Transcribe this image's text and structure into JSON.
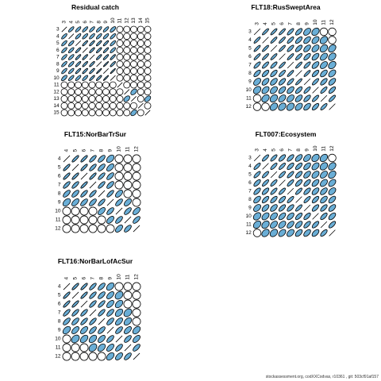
{
  "colors": {
    "ellipse_fill": "#6aaed6",
    "circle_stroke": "#000000",
    "background": "#ffffff"
  },
  "chart_data": [
    {
      "type": "correlation-ellipse-matrix",
      "title": "Residual catch",
      "ages": [
        "3",
        "4",
        "5",
        "6",
        "7",
        "8",
        "9",
        "10",
        "11",
        "12",
        "13",
        "14",
        "15"
      ],
      "strength_rows": [
        [
          1,
          0.6,
          0.6,
          0.6,
          0.6,
          0.6,
          0.6,
          0.5,
          0,
          0,
          0,
          0,
          0
        ],
        [
          0.6,
          1,
          0.6,
          0.6,
          0.6,
          0.6,
          0.6,
          0.6,
          0,
          0,
          0,
          0,
          0
        ],
        [
          0.6,
          0.6,
          1,
          0.7,
          0.7,
          0.7,
          0.7,
          0.6,
          0,
          0,
          0,
          0,
          0
        ],
        [
          0.6,
          0.6,
          0.7,
          1,
          0.7,
          0.7,
          0.7,
          0.6,
          0,
          0,
          0,
          0,
          0
        ],
        [
          0.6,
          0.6,
          0.7,
          0.7,
          1,
          0.7,
          0.7,
          0.7,
          0,
          0,
          0,
          0,
          0
        ],
        [
          0.6,
          0.6,
          0.7,
          0.7,
          0.7,
          1,
          0.8,
          0.7,
          0,
          0,
          0,
          0,
          0
        ],
        [
          0.6,
          0.6,
          0.7,
          0.7,
          0.7,
          0.8,
          1,
          0.8,
          0,
          0,
          0,
          0,
          0
        ],
        [
          0.5,
          0.6,
          0.6,
          0.6,
          0.7,
          0.7,
          0.8,
          1,
          0,
          0,
          0,
          0,
          0
        ],
        [
          0,
          0,
          0,
          0,
          0,
          0,
          0,
          0,
          1,
          0,
          0,
          0,
          0
        ],
        [
          0,
          0,
          0,
          0,
          0,
          0,
          0,
          0,
          0,
          1,
          0.3,
          0,
          0
        ],
        [
          0,
          0,
          0,
          0,
          0,
          0,
          0,
          0,
          0,
          0.3,
          1,
          0,
          0.3
        ],
        [
          0,
          0,
          0,
          0,
          0,
          0,
          0,
          0,
          0,
          0,
          0,
          1,
          0
        ],
        [
          0,
          0,
          0,
          0,
          0,
          0,
          0,
          0,
          0,
          0,
          0.3,
          0,
          1
        ]
      ]
    },
    {
      "type": "correlation-ellipse-matrix",
      "title": "FLT18:RusSweptArea",
      "ages": [
        "3",
        "4",
        "5",
        "6",
        "7",
        "8",
        "9",
        "10",
        "11",
        "12"
      ],
      "strength_rows": [
        [
          1,
          0.7,
          0.7,
          0.7,
          0.6,
          0.5,
          0.3,
          0.2,
          0,
          0
        ],
        [
          0.7,
          1,
          0.7,
          0.7,
          0.6,
          0.5,
          0.4,
          0.3,
          0.2,
          0
        ],
        [
          0.7,
          0.7,
          1,
          0.7,
          0.6,
          0.5,
          0.4,
          0.3,
          0.2,
          0.2
        ],
        [
          0.7,
          0.7,
          0.7,
          1,
          0.7,
          0.6,
          0.5,
          0.4,
          0.3,
          0.2
        ],
        [
          0.6,
          0.6,
          0.6,
          0.7,
          1,
          0.7,
          0.6,
          0.4,
          0.3,
          0.2
        ],
        [
          0.5,
          0.5,
          0.5,
          0.6,
          0.7,
          1,
          0.7,
          0.5,
          0.4,
          0.3
        ],
        [
          0.3,
          0.4,
          0.4,
          0.5,
          0.6,
          0.7,
          1,
          0.6,
          0.5,
          0.4
        ],
        [
          0.2,
          0.3,
          0.3,
          0.4,
          0.4,
          0.5,
          0.6,
          1,
          0.6,
          0.5
        ],
        [
          0,
          0.2,
          0.2,
          0.3,
          0.3,
          0.4,
          0.5,
          0.6,
          1,
          0.6
        ],
        [
          0,
          0,
          0.2,
          0.2,
          0.2,
          0.3,
          0.4,
          0.5,
          0.6,
          1
        ]
      ]
    },
    {
      "type": "correlation-ellipse-matrix",
      "title": "FLT15:NorBarTrSur",
      "ages": [
        "4",
        "5",
        "6",
        "7",
        "8",
        "9",
        "10",
        "11",
        "12"
      ],
      "strength_rows": [
        [
          1,
          0.7,
          0.7,
          0.6,
          0.5,
          0.3,
          0,
          0,
          0
        ],
        [
          0.7,
          1,
          0.7,
          0.6,
          0.5,
          0.4,
          0,
          0,
          0
        ],
        [
          0.7,
          0.7,
          1,
          0.7,
          0.6,
          0.5,
          0,
          0,
          0
        ],
        [
          0.6,
          0.6,
          0.7,
          1,
          0.6,
          0.5,
          0,
          0,
          0
        ],
        [
          0.5,
          0.5,
          0.6,
          0.6,
          1,
          0.6,
          0.4,
          0,
          0
        ],
        [
          0.3,
          0.4,
          0.5,
          0.5,
          0.6,
          1,
          0.5,
          0.4,
          0
        ],
        [
          0,
          0,
          0,
          0,
          0.4,
          0.5,
          1,
          0.5,
          0.4
        ],
        [
          0,
          0,
          0,
          0,
          0,
          0.4,
          0.5,
          1,
          0.5
        ],
        [
          0,
          0,
          0,
          0,
          0,
          0,
          0.4,
          0.5,
          1
        ]
      ]
    },
    {
      "type": "correlation-ellipse-matrix",
      "title": "FLT007:Ecosystem",
      "ages": [
        "3",
        "4",
        "5",
        "6",
        "7",
        "8",
        "9",
        "10",
        "11",
        "12"
      ],
      "strength_rows": [
        [
          1,
          0.6,
          0.6,
          0.5,
          0.5,
          0.4,
          0.3,
          0.2,
          0.2,
          0
        ],
        [
          0.6,
          1,
          0.6,
          0.6,
          0.5,
          0.5,
          0.4,
          0.3,
          0.2,
          0.2
        ],
        [
          0.6,
          0.6,
          1,
          0.6,
          0.6,
          0.5,
          0.4,
          0.3,
          0.3,
          0.2
        ],
        [
          0.5,
          0.6,
          0.6,
          1,
          0.6,
          0.5,
          0.5,
          0.4,
          0.3,
          0.3
        ],
        [
          0.5,
          0.5,
          0.6,
          0.6,
          1,
          0.6,
          0.5,
          0.4,
          0.4,
          0.3
        ],
        [
          0.4,
          0.5,
          0.5,
          0.5,
          0.6,
          1,
          0.6,
          0.5,
          0.4,
          0.4
        ],
        [
          0.3,
          0.4,
          0.4,
          0.5,
          0.5,
          0.6,
          1,
          0.5,
          0.5,
          0.4
        ],
        [
          0.2,
          0.3,
          0.3,
          0.4,
          0.4,
          0.5,
          0.5,
          1,
          0.5,
          0.4
        ],
        [
          0.2,
          0.2,
          0.3,
          0.3,
          0.4,
          0.4,
          0.5,
          0.5,
          1,
          0.5
        ],
        [
          0,
          0.2,
          0.2,
          0.3,
          0.3,
          0.4,
          0.4,
          0.4,
          0.5,
          1
        ]
      ]
    },
    {
      "type": "correlation-ellipse-matrix",
      "title": "FLT16:NorBarLofAcSur",
      "ages": [
        "4",
        "5",
        "6",
        "7",
        "8",
        "9",
        "10",
        "11",
        "12"
      ],
      "strength_rows": [
        [
          1,
          0.7,
          0.7,
          0.6,
          0.5,
          0.3,
          0,
          0,
          0
        ],
        [
          0.7,
          1,
          0.7,
          0.6,
          0.5,
          0.4,
          0.2,
          0,
          0
        ],
        [
          0.7,
          0.7,
          1,
          0.6,
          0.6,
          0.4,
          0.3,
          0,
          0
        ],
        [
          0.6,
          0.6,
          0.6,
          1,
          0.6,
          0.5,
          0.3,
          0.2,
          0
        ],
        [
          0.5,
          0.5,
          0.6,
          0.6,
          1,
          0.5,
          0.4,
          0.3,
          0
        ],
        [
          0.3,
          0.4,
          0.4,
          0.5,
          0.5,
          1,
          0.5,
          0.4,
          0.3
        ],
        [
          0,
          0.2,
          0.3,
          0.3,
          0.4,
          0.5,
          1,
          0.5,
          0.4
        ],
        [
          0,
          0,
          0,
          0.2,
          0.3,
          0.4,
          0.5,
          1,
          0.5
        ],
        [
          0,
          0,
          0,
          0,
          0,
          0.3,
          0.4,
          0.5,
          1
        ]
      ]
    }
  ],
  "footer": {
    "text": "stockassessment.org, codΧΧCodvas, r10361 , git: 503cf91af157"
  }
}
